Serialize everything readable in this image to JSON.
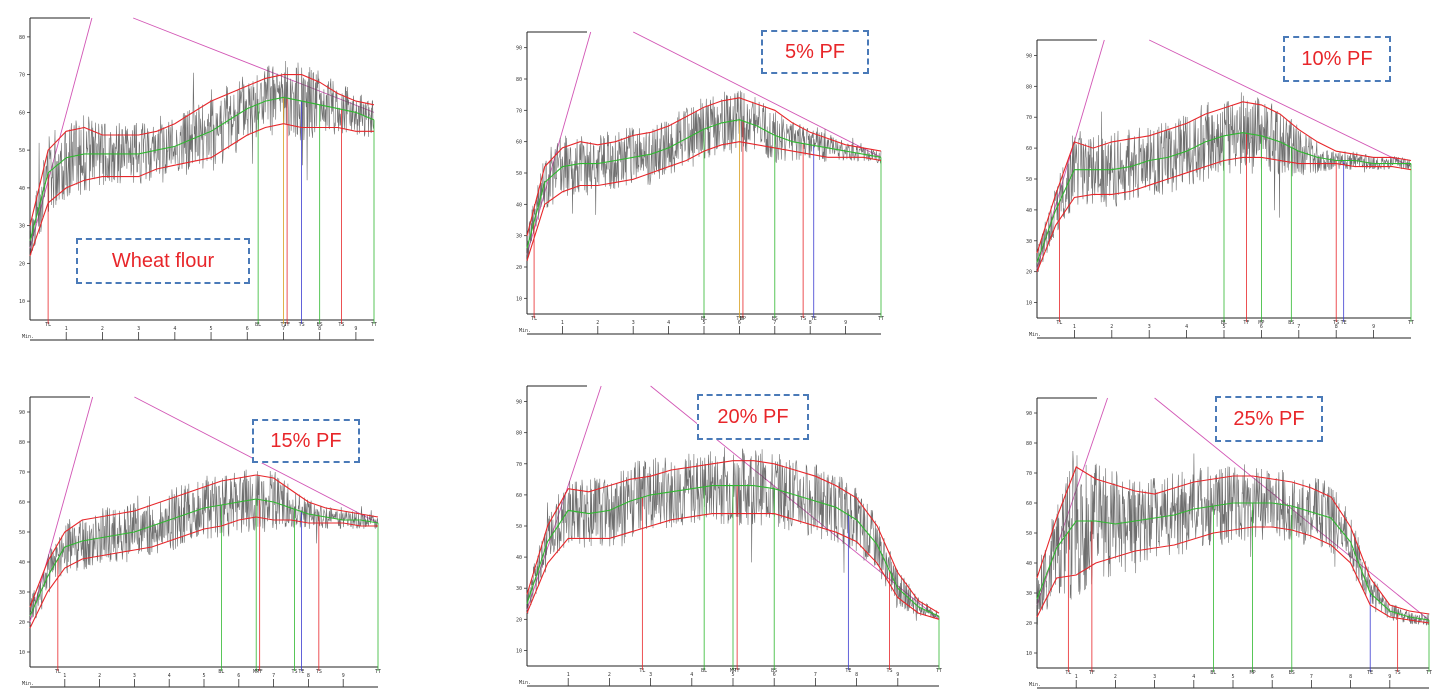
{
  "chart_data": [
    {
      "type": "line",
      "label": "Wheat flour",
      "colors": {
        "trace": "#555555",
        "envelope": "#e8262a",
        "mean": "#2fb82f",
        "tangent": "#d256b5"
      },
      "x_ticks": [
        "1",
        "2",
        "3",
        "4",
        "5",
        "6",
        "7",
        "8",
        "9"
      ],
      "x_unit": "Min.",
      "y_ticks": [
        "10",
        "20",
        "30",
        "40",
        "50",
        "60",
        "70",
        "80"
      ],
      "ylim": [
        5,
        85
      ],
      "xlim": [
        0,
        9.5
      ],
      "x": [
        0,
        0.5,
        1,
        1.5,
        2,
        2.5,
        3,
        3.5,
        4,
        4.5,
        5,
        5.5,
        6,
        6.5,
        7,
        7.5,
        8,
        8.5,
        9,
        9.5
      ],
      "series": [
        {
          "role": "upper",
          "values": [
            30,
            50,
            55,
            56,
            54,
            54,
            54,
            55,
            57,
            60,
            63,
            65,
            67,
            69,
            70,
            70,
            68,
            65,
            63,
            62
          ]
        },
        {
          "role": "mean",
          "values": [
            26,
            44,
            48,
            49,
            49,
            49,
            49,
            50,
            51,
            53,
            55,
            58,
            61,
            63,
            64,
            63,
            62,
            61,
            60,
            58
          ]
        },
        {
          "role": "lower",
          "values": [
            22,
            36,
            40,
            42,
            43,
            43,
            43,
            45,
            46,
            47,
            48,
            51,
            54,
            56,
            57,
            56,
            56,
            56,
            55,
            55
          ]
        }
      ],
      "markers": [
        {
          "label": "TL",
          "x": 0.5,
          "kind": "red"
        },
        {
          "label": "BL",
          "x": 6.3,
          "kind": "green"
        },
        {
          "label": "TI",
          "x": 7.0,
          "kind": "orange"
        },
        {
          "label": "TF",
          "x": 7.1,
          "kind": "red"
        },
        {
          "label": "TS",
          "x": 7.5,
          "kind": "blue"
        },
        {
          "label": "BS",
          "x": 8.0,
          "kind": "green"
        },
        {
          "label": "TS",
          "x": 8.6,
          "kind": "red"
        },
        {
          "label": "TT",
          "x": 9.5,
          "kind": "green"
        }
      ]
    },
    {
      "type": "line",
      "label": "5% PF",
      "colors": {
        "trace": "#555555",
        "envelope": "#e8262a",
        "mean": "#2fb82f",
        "tangent": "#d256b5"
      },
      "x_ticks": [
        "1",
        "2",
        "3",
        "4",
        "5",
        "6",
        "7",
        "8",
        "9"
      ],
      "x_unit": "Min.",
      "y_ticks": [
        "10",
        "20",
        "30",
        "40",
        "50",
        "60",
        "70",
        "80",
        "90"
      ],
      "ylim": [
        5,
        95
      ],
      "xlim": [
        0,
        10
      ],
      "x": [
        0,
        0.5,
        1,
        1.5,
        2,
        2.5,
        3,
        3.5,
        4,
        4.5,
        5,
        5.5,
        6,
        6.5,
        7,
        7.5,
        8,
        8.5,
        9,
        9.5,
        10
      ],
      "series": [
        {
          "role": "upper",
          "values": [
            30,
            52,
            58,
            60,
            59,
            60,
            62,
            63,
            65,
            68,
            71,
            73,
            74,
            72,
            70,
            66,
            63,
            61,
            59,
            58,
            57
          ]
        },
        {
          "role": "mean",
          "values": [
            26,
            47,
            52,
            53,
            53,
            54,
            55,
            56,
            58,
            61,
            64,
            66,
            67,
            65,
            62,
            60,
            59,
            58,
            57,
            56,
            55
          ]
        },
        {
          "role": "lower",
          "values": [
            22,
            40,
            44,
            46,
            46,
            47,
            48,
            50,
            52,
            54,
            57,
            59,
            60,
            59,
            58,
            57,
            56,
            55,
            55,
            55,
            54
          ]
        }
      ],
      "markers": [
        {
          "label": "TL",
          "x": 0.2,
          "kind": "red"
        },
        {
          "label": "BL",
          "x": 5.0,
          "kind": "green"
        },
        {
          "label": "TI",
          "x": 6.0,
          "kind": "orange"
        },
        {
          "label": "MP",
          "x": 6.1,
          "kind": "red"
        },
        {
          "label": "BS",
          "x": 7.0,
          "kind": "green"
        },
        {
          "label": "TS",
          "x": 7.8,
          "kind": "red"
        },
        {
          "label": "TE",
          "x": 8.1,
          "kind": "blue"
        },
        {
          "label": "TT",
          "x": 10.0,
          "kind": "green"
        }
      ]
    },
    {
      "type": "line",
      "label": "10% PF",
      "colors": {
        "trace": "#555555",
        "envelope": "#e8262a",
        "mean": "#2fb82f",
        "tangent": "#d256b5"
      },
      "x_ticks": [
        "1",
        "2",
        "3",
        "4",
        "5",
        "6",
        "7",
        "8",
        "9"
      ],
      "x_unit": "Min.",
      "y_ticks": [
        "10",
        "20",
        "30",
        "40",
        "50",
        "60",
        "70",
        "80",
        "90"
      ],
      "ylim": [
        5,
        95
      ],
      "xlim": [
        0,
        10
      ],
      "x": [
        0,
        0.5,
        1,
        1.5,
        2,
        2.5,
        3,
        3.5,
        4,
        4.5,
        5,
        5.5,
        6,
        6.5,
        7,
        7.5,
        8,
        8.5,
        9,
        9.5,
        10
      ],
      "series": [
        {
          "role": "upper",
          "values": [
            26,
            45,
            62,
            60,
            62,
            63,
            64,
            66,
            68,
            71,
            73,
            75,
            74,
            71,
            66,
            62,
            59,
            58,
            57,
            57,
            56
          ]
        },
        {
          "role": "mean",
          "values": [
            23,
            40,
            53,
            53,
            53,
            54,
            56,
            57,
            59,
            62,
            64,
            65,
            64,
            62,
            59,
            57,
            56,
            56,
            55,
            55,
            55
          ]
        },
        {
          "role": "lower",
          "values": [
            20,
            35,
            44,
            45,
            45,
            46,
            48,
            50,
            52,
            54,
            56,
            57,
            57,
            56,
            55,
            55,
            55,
            54,
            54,
            54,
            53
          ]
        }
      ],
      "markers": [
        {
          "label": "TL",
          "x": 0.6,
          "kind": "red"
        },
        {
          "label": "BL",
          "x": 5.0,
          "kind": "green"
        },
        {
          "label": "TF",
          "x": 5.6,
          "kind": "red"
        },
        {
          "label": "MP",
          "x": 6.0,
          "kind": "green"
        },
        {
          "label": "BS",
          "x": 6.8,
          "kind": "green"
        },
        {
          "label": "TS",
          "x": 8.0,
          "kind": "red"
        },
        {
          "label": "TE",
          "x": 8.2,
          "kind": "blue"
        },
        {
          "label": "TT",
          "x": 10.0,
          "kind": "green"
        }
      ]
    },
    {
      "type": "line",
      "label": "15% PF",
      "colors": {
        "trace": "#555555",
        "envelope": "#e8262a",
        "mean": "#2fb82f",
        "tangent": "#d256b5"
      },
      "x_ticks": [
        "1",
        "2",
        "3",
        "4",
        "5",
        "6",
        "7",
        "8",
        "9"
      ],
      "x_unit": "Min.",
      "y_ticks": [
        "10",
        "20",
        "30",
        "40",
        "50",
        "60",
        "70",
        "80",
        "90"
      ],
      "ylim": [
        5,
        95
      ],
      "xlim": [
        0,
        10
      ],
      "x": [
        0,
        0.5,
        1,
        1.5,
        2,
        2.5,
        3,
        3.5,
        4,
        4.5,
        5,
        5.5,
        6,
        6.5,
        7,
        7.5,
        8,
        8.5,
        9,
        9.5,
        10
      ],
      "series": [
        {
          "role": "upper",
          "values": [
            25,
            40,
            50,
            54,
            55,
            56,
            57,
            59,
            61,
            63,
            65,
            67,
            68,
            69,
            68,
            64,
            60,
            58,
            57,
            56,
            55
          ]
        },
        {
          "role": "mean",
          "values": [
            22,
            35,
            45,
            47,
            48,
            49,
            50,
            52,
            54,
            56,
            58,
            59,
            60,
            61,
            60,
            58,
            56,
            55,
            54,
            54,
            53
          ]
        },
        {
          "role": "lower",
          "values": [
            18,
            30,
            38,
            41,
            42,
            43,
            44,
            45,
            47,
            49,
            51,
            52,
            54,
            55,
            54,
            54,
            53,
            53,
            53,
            52,
            52
          ]
        }
      ],
      "markers": [
        {
          "label": "TL",
          "x": 0.8,
          "kind": "red"
        },
        {
          "label": "BL",
          "x": 5.5,
          "kind": "green"
        },
        {
          "label": "MP",
          "x": 6.5,
          "kind": "green"
        },
        {
          "label": "TF",
          "x": 6.6,
          "kind": "red"
        },
        {
          "label": "TS",
          "x": 7.6,
          "kind": "green"
        },
        {
          "label": "TE",
          "x": 7.8,
          "kind": "blue"
        },
        {
          "label": "TS",
          "x": 8.3,
          "kind": "red"
        },
        {
          "label": "TT",
          "x": 10.0,
          "kind": "green"
        }
      ]
    },
    {
      "type": "line",
      "label": "20% PF",
      "colors": {
        "trace": "#555555",
        "envelope": "#e8262a",
        "mean": "#2fb82f",
        "tangent": "#d256b5"
      },
      "x_ticks": [
        "1",
        "2",
        "3",
        "4",
        "5",
        "6",
        "7",
        "8",
        "9"
      ],
      "x_unit": "Min.",
      "y_ticks": [
        "10",
        "20",
        "30",
        "40",
        "50",
        "60",
        "70",
        "80",
        "90"
      ],
      "ylim": [
        5,
        95
      ],
      "xlim": [
        0,
        10
      ],
      "x": [
        0,
        0.5,
        1,
        1.5,
        2,
        2.5,
        3,
        3.5,
        4,
        4.5,
        5,
        5.5,
        6,
        6.5,
        7,
        7.5,
        8,
        8.5,
        9,
        9.5,
        10
      ],
      "series": [
        {
          "role": "upper",
          "values": [
            28,
            50,
            62,
            61,
            63,
            65,
            66,
            68,
            69,
            70,
            71,
            71,
            70,
            68,
            66,
            63,
            59,
            50,
            35,
            26,
            22
          ]
        },
        {
          "role": "mean",
          "values": [
            25,
            45,
            55,
            54,
            55,
            58,
            60,
            61,
            62,
            63,
            63,
            63,
            62,
            60,
            58,
            56,
            52,
            44,
            30,
            24,
            21
          ]
        },
        {
          "role": "lower",
          "values": [
            22,
            38,
            46,
            46,
            46,
            48,
            50,
            52,
            53,
            54,
            54,
            54,
            54,
            52,
            50,
            48,
            45,
            38,
            27,
            22,
            20
          ]
        }
      ],
      "markers": [
        {
          "label": "TL",
          "x": 2.8,
          "kind": "red"
        },
        {
          "label": "BL",
          "x": 4.3,
          "kind": "green"
        },
        {
          "label": "MP",
          "x": 5.0,
          "kind": "green"
        },
        {
          "label": "TF",
          "x": 5.1,
          "kind": "red"
        },
        {
          "label": "BS",
          "x": 6.0,
          "kind": "green"
        },
        {
          "label": "TE",
          "x": 7.8,
          "kind": "blue"
        },
        {
          "label": "TS",
          "x": 8.8,
          "kind": "red"
        },
        {
          "label": "TT",
          "x": 10.0,
          "kind": "green"
        }
      ]
    },
    {
      "type": "line",
      "label": "25% PF",
      "colors": {
        "trace": "#555555",
        "envelope": "#e8262a",
        "mean": "#2fb82f",
        "tangent": "#d256b5"
      },
      "x_ticks": [
        "1",
        "2",
        "3",
        "4",
        "5",
        "6",
        "7",
        "8",
        "9"
      ],
      "x_unit": "Min.",
      "y_ticks": [
        "10",
        "20",
        "30",
        "40",
        "50",
        "60",
        "70",
        "80",
        "90"
      ],
      "ylim": [
        5,
        95
      ],
      "xlim": [
        0,
        10
      ],
      "x": [
        0,
        0.5,
        1,
        1.5,
        2,
        2.5,
        3,
        3.5,
        4,
        4.5,
        5,
        5.5,
        6,
        6.5,
        7,
        7.5,
        8,
        8.5,
        9,
        9.5,
        10
      ],
      "series": [
        {
          "role": "upper",
          "values": [
            35,
            55,
            72,
            68,
            66,
            64,
            63,
            65,
            67,
            68,
            69,
            69,
            68,
            67,
            65,
            62,
            52,
            35,
            26,
            24,
            23
          ]
        },
        {
          "role": "mean",
          "values": [
            28,
            45,
            54,
            54,
            53,
            54,
            55,
            56,
            58,
            59,
            60,
            60,
            60,
            59,
            57,
            55,
            47,
            30,
            24,
            22,
            21
          ]
        },
        {
          "role": "lower",
          "values": [
            22,
            35,
            36,
            40,
            42,
            44,
            45,
            46,
            48,
            50,
            51,
            52,
            52,
            51,
            49,
            46,
            40,
            26,
            22,
            21,
            20
          ]
        }
      ],
      "markers": [
        {
          "label": "TL",
          "x": 0.8,
          "kind": "red"
        },
        {
          "label": "TF",
          "x": 1.4,
          "kind": "red"
        },
        {
          "label": "BL",
          "x": 4.5,
          "kind": "green"
        },
        {
          "label": "MP",
          "x": 5.5,
          "kind": "green"
        },
        {
          "label": "BS",
          "x": 6.5,
          "kind": "green"
        },
        {
          "label": "TE",
          "x": 8.5,
          "kind": "blue"
        },
        {
          "label": "TS",
          "x": 9.2,
          "kind": "red"
        },
        {
          "label": "TT",
          "x": 10.0,
          "kind": "green"
        }
      ]
    }
  ]
}
